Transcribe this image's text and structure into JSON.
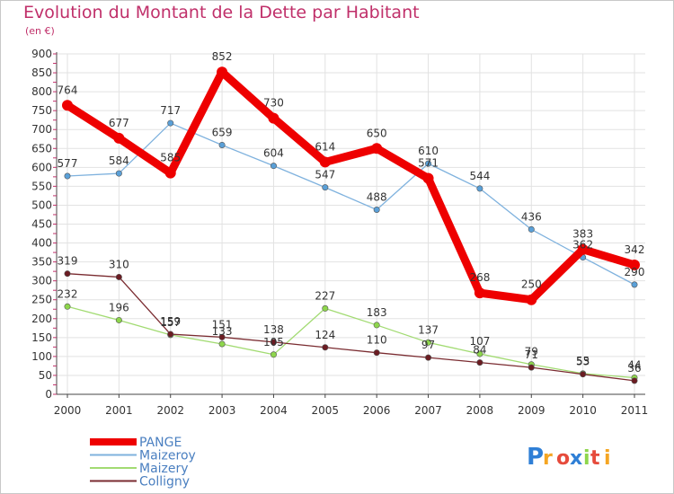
{
  "header": {
    "title": "Evolution du Montant de la Dette par Habitant",
    "unit": "(en €)"
  },
  "logo": {
    "text": "Proxiti"
  },
  "chart_data": {
    "type": "line",
    "title": "Evolution du Montant de la Dette par Habitant",
    "ylabel": "(en €)",
    "ylim": [
      0,
      900
    ],
    "yticks": [
      0,
      50,
      100,
      150,
      200,
      250,
      300,
      350,
      400,
      450,
      500,
      550,
      600,
      650,
      700,
      750,
      800,
      850,
      900
    ],
    "x": [
      "2000",
      "2001",
      "2002",
      "2003",
      "2004",
      "2005",
      "2006",
      "2007",
      "2008",
      "2009",
      "2010",
      "2011"
    ],
    "grid": true,
    "legend_position": "bottom-left",
    "series": [
      {
        "name": "Maizeroy",
        "color": "#5aa0d8",
        "line_color": "#7fb2de",
        "values": [
          577,
          584,
          717,
          659,
          604,
          547,
          488,
          610,
          544,
          436,
          362,
          290
        ]
      },
      {
        "name": "Maizery",
        "color": "#8ed64c",
        "line_color": "#a2db72",
        "values": [
          232,
          196,
          157,
          133,
          105,
          227,
          183,
          137,
          107,
          79,
          55,
          44
        ]
      },
      {
        "name": "Colligny",
        "color": "#6b1c22",
        "line_color": "#7a2b30",
        "values": [
          319,
          310,
          159,
          151,
          138,
          124,
          110,
          97,
          84,
          71,
          53,
          36
        ]
      },
      {
        "name": "PANGE",
        "color": "#ee0000",
        "line_color": "#ee0000",
        "values": [
          764,
          677,
          585,
          852,
          730,
          614,
          650,
          571,
          268,
          250,
          383,
          342
        ]
      }
    ],
    "labels": {
      "Maizeroy": [
        "577",
        "584",
        "717",
        "659",
        "604",
        "547",
        "488",
        "610",
        "544",
        "436",
        "362",
        "290"
      ],
      "Maizery": [
        "232",
        "196",
        "157",
        "133",
        "105",
        "227",
        "183",
        "137",
        "107",
        "79",
        "55",
        "44"
      ],
      "Colligny": [
        "319",
        "310",
        "159",
        "151",
        "138",
        "124",
        "110",
        "97",
        "84",
        "71",
        "53",
        "36"
      ],
      "PANGE": [
        "764",
        "677",
        "585",
        "852",
        "730",
        "614",
        "650",
        "571",
        "268",
        "250",
        "383",
        "342"
      ]
    },
    "legend_order": [
      "PANGE",
      "Maizeroy",
      "Maizery",
      "Colligny"
    ]
  }
}
